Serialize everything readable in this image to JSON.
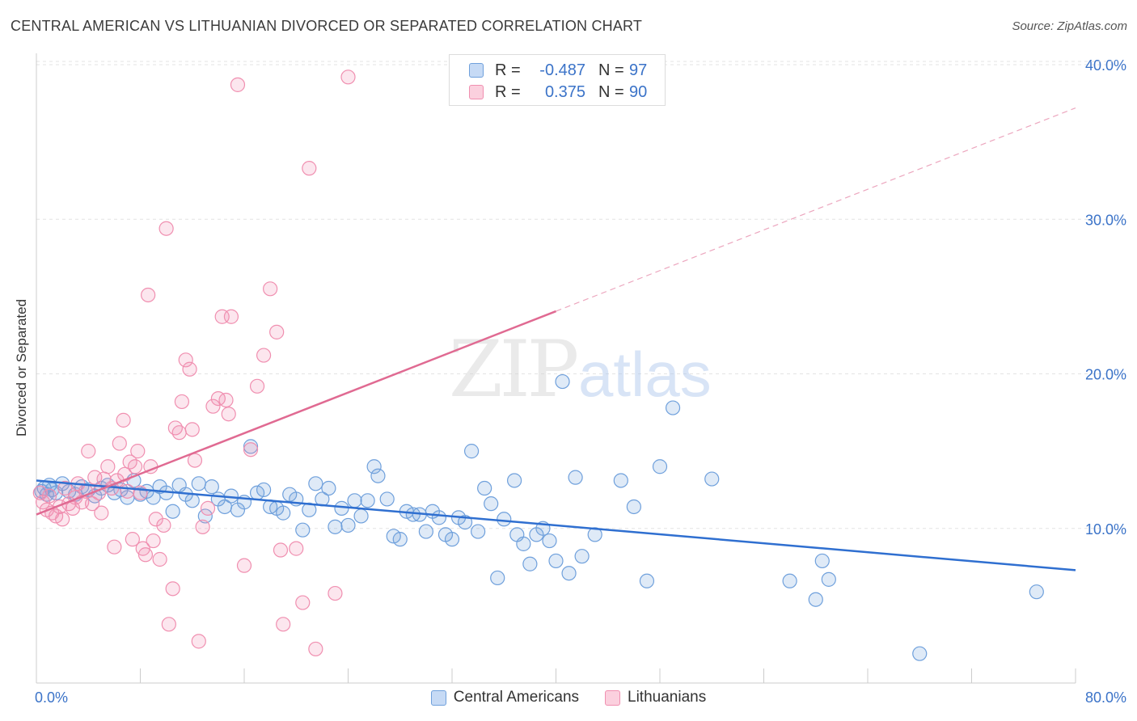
{
  "title": "CENTRAL AMERICAN VS LITHUANIAN DIVORCED OR SEPARATED CORRELATION CHART",
  "source": "Source: ZipAtlas.com",
  "legend": {
    "rows": [
      {
        "r_label": "R =",
        "r_value": "-0.487",
        "n_label": "N =",
        "n_value": "97",
        "color": "#6fa0dc"
      },
      {
        "r_label": "R =",
        "r_value": "0.375",
        "n_label": "N =",
        "n_value": "90",
        "color": "#f08fb0"
      }
    ]
  },
  "bottom_legend": [
    "Central Americans",
    "Lithuanians"
  ],
  "chart_data": {
    "type": "scatter",
    "xlabel": "",
    "ylabel": "Divorced or Separated",
    "xlim": [
      0,
      80
    ],
    "ylim": [
      0,
      40
    ],
    "x_tick_labels": [
      "0.0%",
      "80.0%"
    ],
    "y_tick_labels": [
      "10.0%",
      "20.0%",
      "30.0%",
      "40.0%"
    ],
    "y_ticks": [
      10,
      20,
      30,
      40
    ],
    "watermark": "ZIPatlas",
    "series": [
      {
        "name": "Central Americans",
        "color": "#6fa0dc",
        "line_color": "#2f6fd0",
        "trend": {
          "x0": 0,
          "y0": 13.1,
          "x1": 80,
          "y1": 7.3,
          "dashed_from": null
        },
        "points": [
          [
            0.4,
            12.4
          ],
          [
            0.6,
            12.6
          ],
          [
            0.8,
            12.2
          ],
          [
            1,
            12.8
          ],
          [
            1.2,
            12.5
          ],
          [
            1.5,
            12.3
          ],
          [
            2,
            12.9
          ],
          [
            2.5,
            12.4
          ],
          [
            3,
            12.2
          ],
          [
            3.5,
            12.7
          ],
          [
            4,
            12.5
          ],
          [
            4.5,
            12.1
          ],
          [
            5,
            12.6
          ],
          [
            5.5,
            12.8
          ],
          [
            6,
            12.3
          ],
          [
            6.5,
            12.5
          ],
          [
            7,
            12.0
          ],
          [
            7.5,
            13.1
          ],
          [
            8,
            12.2
          ],
          [
            8.5,
            12.4
          ],
          [
            9,
            12.0
          ],
          [
            9.5,
            12.7
          ],
          [
            10,
            12.3
          ],
          [
            10.5,
            11.1
          ],
          [
            11,
            12.8
          ],
          [
            11.5,
            12.2
          ],
          [
            12,
            11.8
          ],
          [
            12.5,
            12.9
          ],
          [
            13,
            10.8
          ],
          [
            13.5,
            12.7
          ],
          [
            14,
            11.9
          ],
          [
            14.5,
            11.4
          ],
          [
            15,
            12.1
          ],
          [
            15.5,
            11.2
          ],
          [
            16,
            11.7
          ],
          [
            16.5,
            15.3
          ],
          [
            17,
            12.3
          ],
          [
            17.5,
            12.5
          ],
          [
            18,
            11.4
          ],
          [
            18.5,
            11.3
          ],
          [
            19,
            11.0
          ],
          [
            19.5,
            12.2
          ],
          [
            20,
            11.9
          ],
          [
            20.5,
            9.9
          ],
          [
            21,
            11.2
          ],
          [
            21.5,
            12.9
          ],
          [
            22,
            11.9
          ],
          [
            22.5,
            12.6
          ],
          [
            23,
            10.1
          ],
          [
            23.5,
            11.3
          ],
          [
            24,
            10.2
          ],
          [
            24.5,
            11.8
          ],
          [
            25,
            10.8
          ],
          [
            25.5,
            11.8
          ],
          [
            26,
            14.0
          ],
          [
            26.3,
            13.4
          ],
          [
            27,
            11.9
          ],
          [
            27.5,
            9.5
          ],
          [
            28,
            9.3
          ],
          [
            28.5,
            11.1
          ],
          [
            29,
            10.9
          ],
          [
            29.5,
            10.9
          ],
          [
            30,
            9.8
          ],
          [
            30.5,
            11.1
          ],
          [
            31,
            10.7
          ],
          [
            31.5,
            9.6
          ],
          [
            32,
            9.3
          ],
          [
            32.5,
            10.7
          ],
          [
            33,
            10.4
          ],
          [
            33.5,
            15.0
          ],
          [
            34,
            9.8
          ],
          [
            34.5,
            12.6
          ],
          [
            35,
            11.6
          ],
          [
            35.5,
            6.8
          ],
          [
            36,
            10.6
          ],
          [
            36.8,
            13.1
          ],
          [
            37,
            9.6
          ],
          [
            37.5,
            9.0
          ],
          [
            38,
            7.7
          ],
          [
            38.5,
            9.6
          ],
          [
            39,
            10.0
          ],
          [
            39.5,
            9.2
          ],
          [
            40,
            7.9
          ],
          [
            40.5,
            19.5
          ],
          [
            41,
            7.1
          ],
          [
            41.5,
            13.3
          ],
          [
            42,
            8.2
          ],
          [
            43,
            9.6
          ],
          [
            45,
            13.1
          ],
          [
            46,
            11.4
          ],
          [
            47,
            6.6
          ],
          [
            48,
            14.0
          ],
          [
            49,
            17.8
          ],
          [
            52,
            13.2
          ],
          [
            58,
            6.6
          ],
          [
            60,
            5.4
          ],
          [
            60.5,
            7.9
          ],
          [
            61,
            6.7
          ],
          [
            68,
            1.9
          ],
          [
            77,
            5.9
          ]
        ]
      },
      {
        "name": "Lithuanians",
        "color": "#f08fb0",
        "line_color": "#e06a92",
        "trend": {
          "x0": 0,
          "y0": 10.9,
          "x1": 80,
          "y1": 37.2,
          "dashed_from": 40
        },
        "points": [
          [
            0.3,
            12.3
          ],
          [
            0.5,
            11.7
          ],
          [
            0.8,
            11.2
          ],
          [
            1,
            12.1
          ],
          [
            1.2,
            11.0
          ],
          [
            1.5,
            10.8
          ],
          [
            1.8,
            11.4
          ],
          [
            2,
            10.6
          ],
          [
            2.2,
            12.6
          ],
          [
            2.5,
            11.6
          ],
          [
            2.8,
            11.3
          ],
          [
            3,
            12.0
          ],
          [
            3.2,
            12.9
          ],
          [
            3.5,
            11.7
          ],
          [
            3.8,
            12.4
          ],
          [
            4,
            15.0
          ],
          [
            4.3,
            11.6
          ],
          [
            4.5,
            13.3
          ],
          [
            4.8,
            12.3
          ],
          [
            5,
            11.0
          ],
          [
            5.2,
            13.2
          ],
          [
            5.5,
            14.0
          ],
          [
            5.8,
            12.6
          ],
          [
            6,
            8.8
          ],
          [
            6.2,
            13.1
          ],
          [
            6.4,
            15.5
          ],
          [
            6.7,
            17.0
          ],
          [
            6.8,
            13.5
          ],
          [
            7,
            12.4
          ],
          [
            7.2,
            14.3
          ],
          [
            7.4,
            9.3
          ],
          [
            7.6,
            14.0
          ],
          [
            7.8,
            15.0
          ],
          [
            8,
            12.3
          ],
          [
            8.2,
            8.7
          ],
          [
            8.4,
            8.3
          ],
          [
            8.6,
            25.1
          ],
          [
            8.8,
            14.0
          ],
          [
            9,
            9.2
          ],
          [
            9.2,
            10.6
          ],
          [
            9.5,
            8.0
          ],
          [
            9.8,
            10.2
          ],
          [
            10,
            29.4
          ],
          [
            10.2,
            3.8
          ],
          [
            10.5,
            6.1
          ],
          [
            10.7,
            16.5
          ],
          [
            11,
            16.2
          ],
          [
            11.2,
            18.2
          ],
          [
            11.5,
            20.9
          ],
          [
            11.8,
            20.3
          ],
          [
            12,
            16.4
          ],
          [
            12.2,
            14.4
          ],
          [
            12.5,
            2.7
          ],
          [
            12.8,
            10.1
          ],
          [
            13.2,
            11.3
          ],
          [
            13.6,
            17.9
          ],
          [
            14,
            18.4
          ],
          [
            14.3,
            23.7
          ],
          [
            14.6,
            18.3
          ],
          [
            14.8,
            17.4
          ],
          [
            15,
            23.7
          ],
          [
            15.5,
            38.7
          ],
          [
            16,
            7.6
          ],
          [
            16.5,
            15.1
          ],
          [
            17,
            19.2
          ],
          [
            17.5,
            21.2
          ],
          [
            18,
            25.5
          ],
          [
            18.5,
            22.7
          ],
          [
            18.8,
            8.6
          ],
          [
            19,
            3.8
          ],
          [
            20,
            8.7
          ],
          [
            20.5,
            5.2
          ],
          [
            21,
            33.3
          ],
          [
            21.5,
            2.2
          ],
          [
            23,
            5.8
          ],
          [
            24,
            39.2
          ]
        ]
      }
    ]
  }
}
